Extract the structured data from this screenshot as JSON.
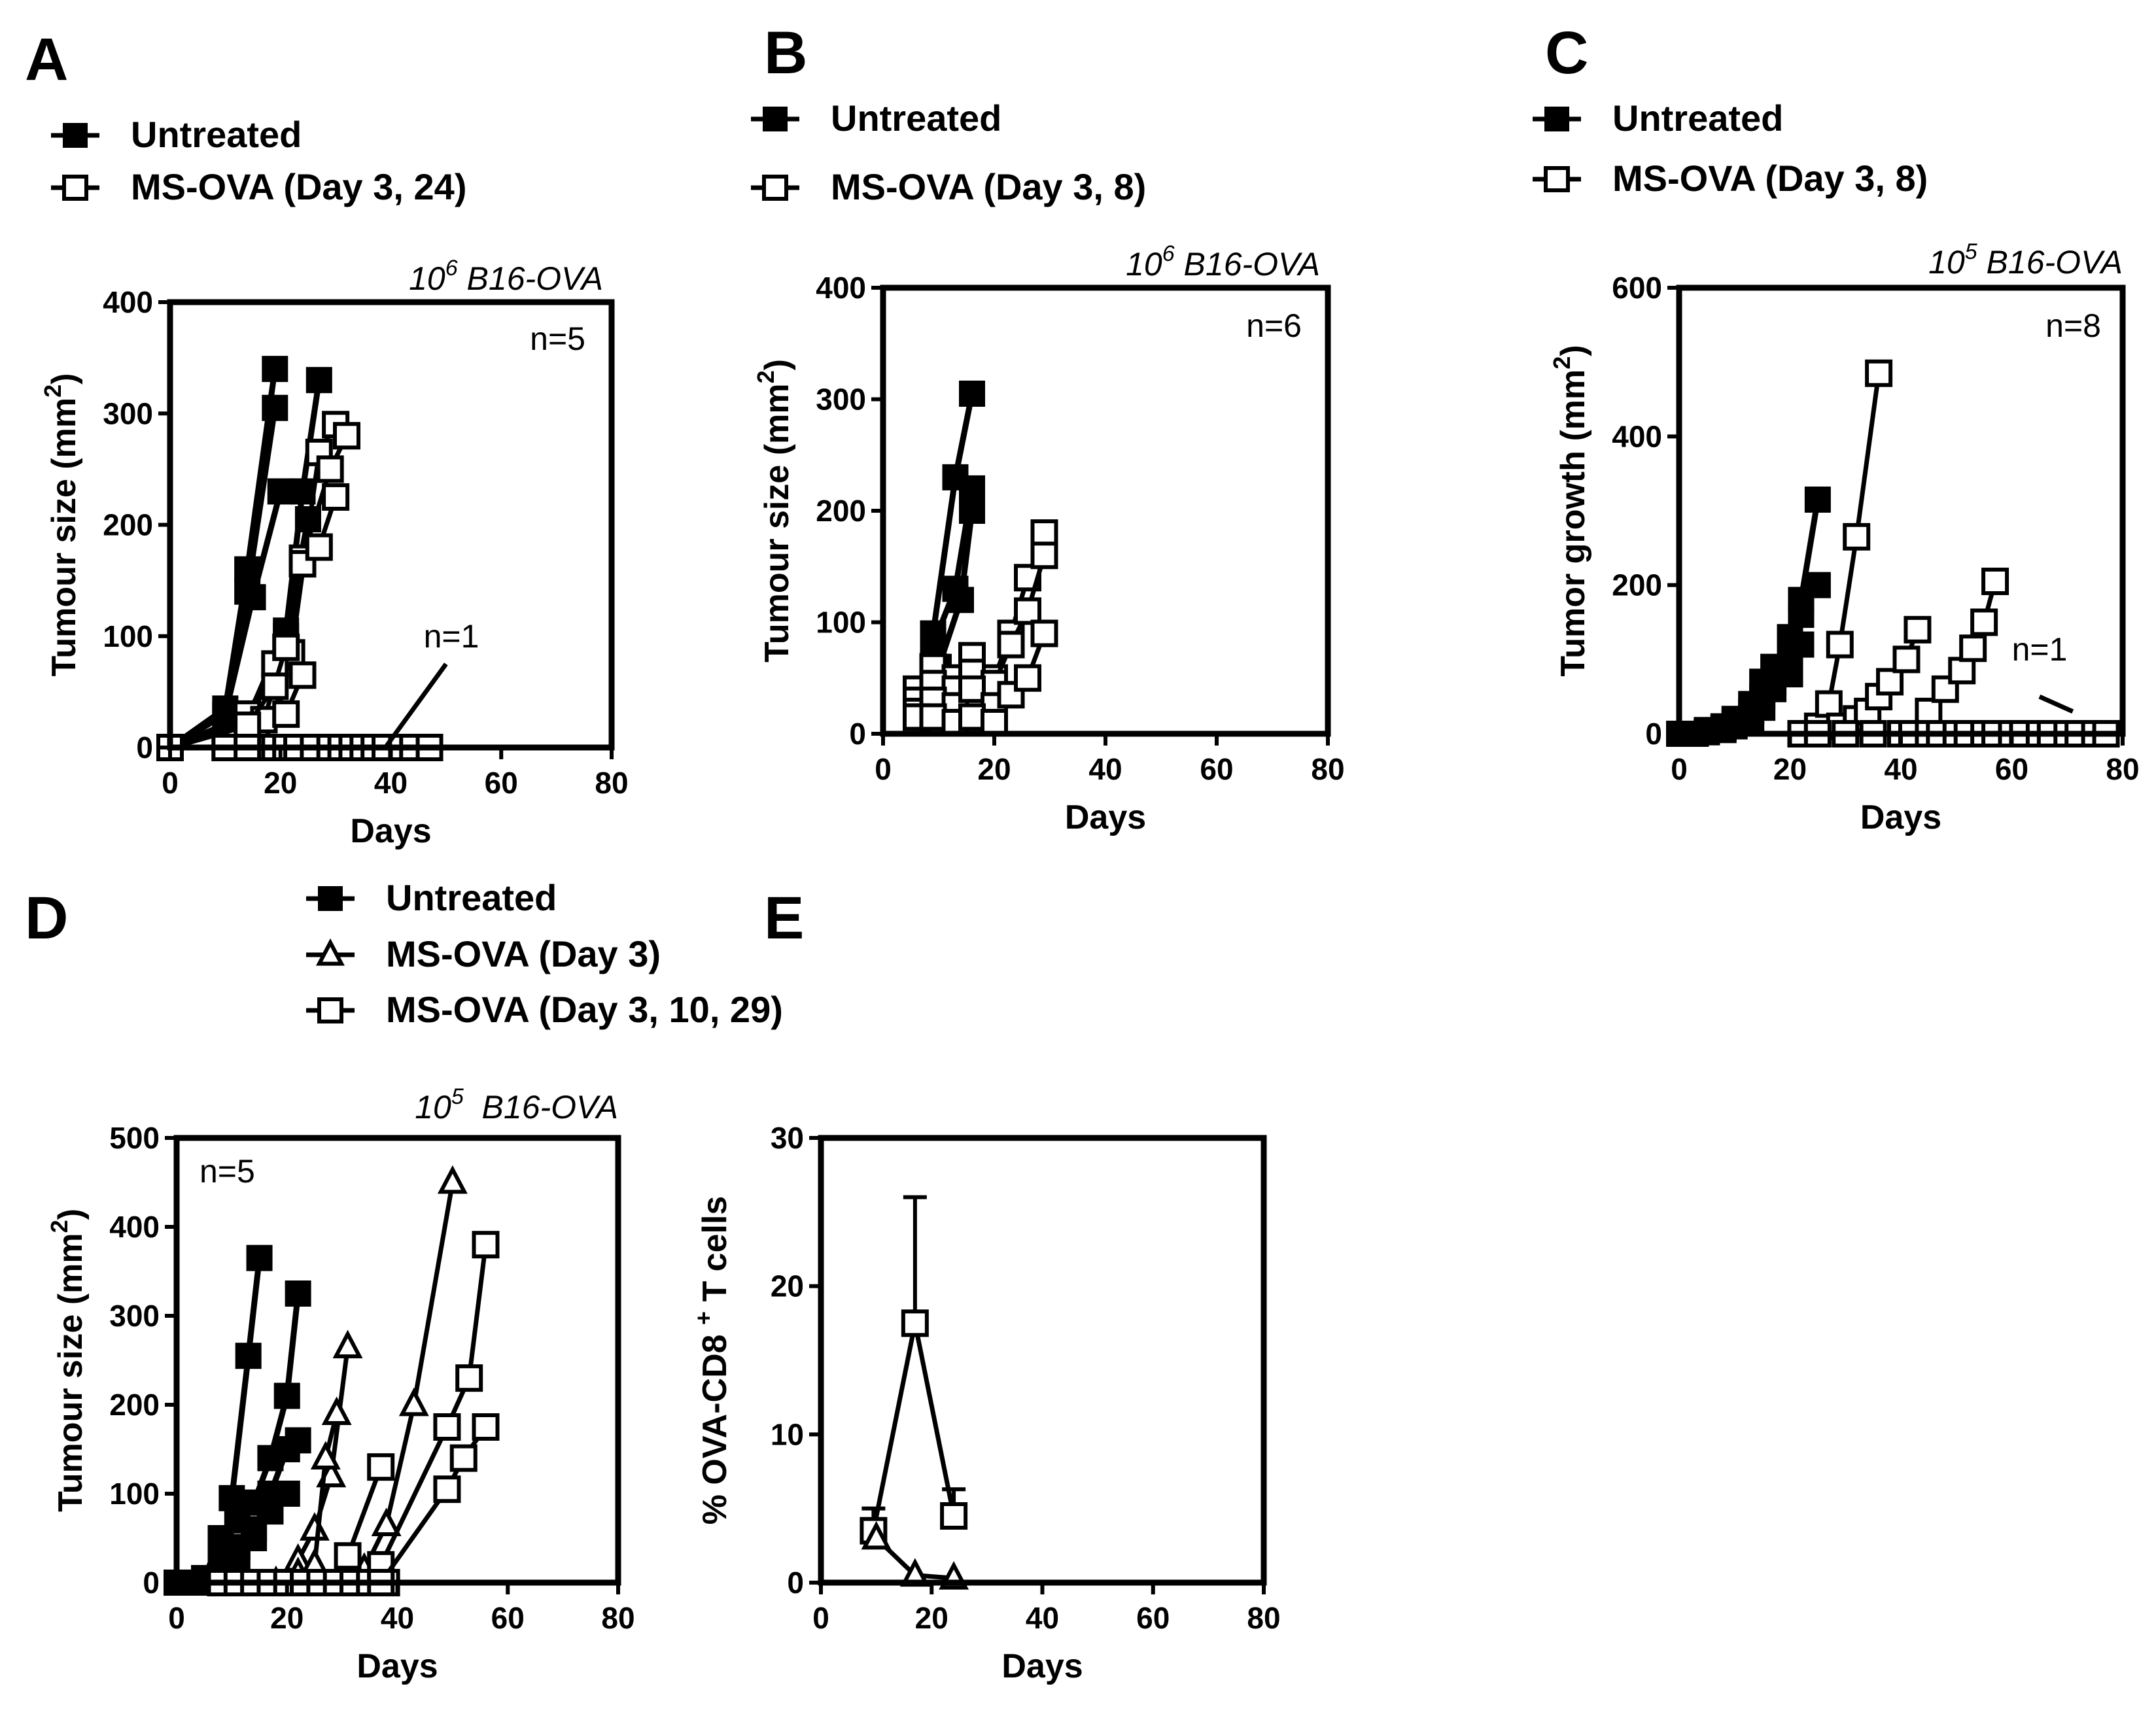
{
  "chart_data": [
    {
      "panel": "A",
      "type": "line",
      "subtitle_base": "10",
      "subtitle_exp": "6",
      "subtitle_rest": " B16-OVA",
      "n_main": "n=5",
      "n_extra": "n=1",
      "xlabel": "Days",
      "ylabel_base": "Tumour size (mm",
      "ylabel_exp": "2",
      "ylabel_end": ")",
      "xlim": [
        0,
        80
      ],
      "ylim": [
        0,
        400
      ],
      "xticks": [
        "0",
        "20",
        "40",
        "60",
        "80"
      ],
      "yticks": [
        "0",
        "100",
        "200",
        "300",
        "400"
      ],
      "legend": [
        {
          "label": "Untreated",
          "marker": "filled-square"
        },
        {
          "label": "MS-OVA (Day 3, 24)",
          "marker": "open-square"
        }
      ],
      "series": [
        {
          "name": "Untreated",
          "marker": "filled-square",
          "x": [
            0,
            10,
            14,
            19
          ],
          "y": [
            0,
            35,
            160,
            340
          ]
        },
        {
          "name": "Untreated",
          "marker": "filled-square",
          "x": [
            0,
            10,
            14,
            19
          ],
          "y": [
            0,
            30,
            140,
            305
          ]
        },
        {
          "name": "Untreated",
          "marker": "filled-square",
          "x": [
            0,
            10,
            15,
            20
          ],
          "y": [
            0,
            30,
            135,
            230
          ]
        },
        {
          "name": "Untreated",
          "marker": "filled-square",
          "x": [
            0,
            14,
            21,
            24,
            27
          ],
          "y": [
            0,
            25,
            105,
            230,
            330
          ]
        },
        {
          "name": "Untreated",
          "marker": "filled-square",
          "x": [
            0,
            14,
            21,
            25
          ],
          "y": [
            0,
            20,
            100,
            205
          ]
        },
        {
          "name": "MS-OVA (Day 3, 24)",
          "marker": "open-square",
          "x": [
            0,
            10,
            17,
            22,
            27,
            30
          ],
          "y": [
            0,
            0,
            0,
            85,
            265,
            290
          ]
        },
        {
          "name": "MS-OVA (Day 3, 24)",
          "marker": "open-square",
          "x": [
            0,
            14,
            19,
            24,
            29,
            32
          ],
          "y": [
            0,
            30,
            75,
            170,
            250,
            280
          ]
        },
        {
          "name": "MS-OVA (Day 3, 24)",
          "marker": "open-square",
          "x": [
            0,
            17,
            21,
            24,
            27,
            30
          ],
          "y": [
            0,
            25,
            90,
            165,
            180,
            225
          ]
        },
        {
          "name": "MS-OVA (Day 3, 24)",
          "marker": "open-square",
          "x": [
            0,
            14,
            19,
            21,
            24
          ],
          "y": [
            0,
            20,
            55,
            30,
            65
          ]
        },
        {
          "name": "MS-OVA (Day 3, 24)",
          "marker": "open-square",
          "x": [
            0,
            10,
            14,
            19,
            21,
            23,
            26,
            29,
            31,
            33,
            35,
            37,
            39,
            42,
            44,
            47
          ],
          "y": [
            0,
            0,
            0,
            0,
            0,
            0,
            0,
            0,
            0,
            0,
            0,
            0,
            0,
            0,
            0,
            0
          ]
        },
        {
          "name": "MS-OVA (Day 3, 24)",
          "marker": "none",
          "x": [
            39,
            50
          ],
          "y": [
            0,
            75
          ]
        }
      ]
    },
    {
      "panel": "B",
      "type": "line",
      "subtitle_base": "10",
      "subtitle_exp": "6",
      "subtitle_rest": " B16-OVA",
      "n_main": "n=6",
      "xlabel": "Days",
      "ylabel_base": "Tumour size (mm",
      "ylabel_exp": "2",
      "ylabel_end": ")",
      "xlim": [
        0,
        80
      ],
      "ylim": [
        0,
        400
      ],
      "xticks": [
        "0",
        "20",
        "40",
        "60",
        "80"
      ],
      "yticks": [
        "0",
        "100",
        "200",
        "300",
        "400"
      ],
      "legend": [
        {
          "label": "Untreated",
          "marker": "filled-square"
        },
        {
          "label": "MS-OVA (Day 3, 8)",
          "marker": "open-square"
        }
      ],
      "series": [
        {
          "name": "Untreated",
          "marker": "filled-square",
          "x": [
            6,
            9,
            13,
            16
          ],
          "y": [
            25,
            90,
            230,
            305
          ]
        },
        {
          "name": "Untreated",
          "marker": "filled-square",
          "x": [
            6,
            9,
            13,
            16
          ],
          "y": [
            20,
            80,
            130,
            220
          ]
        },
        {
          "name": "Untreated",
          "marker": "filled-square",
          "x": [
            6,
            10,
            14,
            16
          ],
          "y": [
            20,
            60,
            120,
            200
          ]
        },
        {
          "name": "MS-OVA (Day 3, 8)",
          "marker": "open-square",
          "x": [
            6,
            9,
            13,
            16,
            20,
            23,
            26,
            29
          ],
          "y": [
            40,
            60,
            50,
            70,
            50,
            90,
            140,
            180
          ]
        },
        {
          "name": "MS-OVA (Day 3, 8)",
          "marker": "open-square",
          "x": [
            6,
            9,
            13,
            16,
            20,
            23,
            26,
            29
          ],
          "y": [
            30,
            45,
            40,
            55,
            45,
            80,
            110,
            160
          ]
        },
        {
          "name": "MS-OVA (Day 3, 8)",
          "marker": "open-square",
          "x": [
            6,
            9,
            13,
            16,
            20,
            23,
            26,
            29
          ],
          "y": [
            20,
            30,
            25,
            40,
            25,
            35,
            50,
            90
          ]
        },
        {
          "name": "MS-OVA (Day 3, 8)",
          "marker": "open-square",
          "x": [
            6,
            9,
            13,
            16,
            20
          ],
          "y": [
            15,
            15,
            10,
            15,
            10
          ]
        }
      ]
    },
    {
      "panel": "C",
      "type": "line",
      "subtitle_base": "10",
      "subtitle_exp": "5",
      "subtitle_rest": " B16-OVA",
      "n_main": "n=8",
      "n_extra": "n=1",
      "xlabel": "Days",
      "ylabel_base": "Tumor growth (mm",
      "ylabel_exp": "2",
      "ylabel_end": ")",
      "xlim": [
        0,
        80
      ],
      "ylim": [
        0,
        600
      ],
      "xticks": [
        "0",
        "20",
        "40",
        "60",
        "80"
      ],
      "yticks": [
        "0",
        "200",
        "400",
        "600"
      ],
      "legend": [
        {
          "label": "Untreated",
          "marker": "filled-square"
        },
        {
          "label": "MS-OVA (Day 3, 8)",
          "marker": "open-square"
        }
      ],
      "series": [
        {
          "name": "Untreated",
          "marker": "filled-square",
          "x": [
            0,
            3,
            5,
            8,
            10,
            13,
            15,
            17,
            20,
            22,
            25
          ],
          "y": [
            0,
            0,
            5,
            10,
            20,
            40,
            70,
            90,
            130,
            180,
            315
          ]
        },
        {
          "name": "Untreated",
          "marker": "filled-square",
          "x": [
            0,
            3,
            5,
            8,
            10,
            13,
            15,
            17,
            20,
            22,
            25
          ],
          "y": [
            0,
            0,
            3,
            8,
            15,
            30,
            50,
            70,
            110,
            160,
            200
          ]
        },
        {
          "name": "Untreated",
          "marker": "filled-square",
          "x": [
            0,
            3,
            5,
            8,
            10,
            13,
            15,
            17,
            20,
            22
          ],
          "y": [
            0,
            0,
            2,
            5,
            10,
            20,
            35,
            60,
            80,
            120
          ]
        },
        {
          "name": "MS-OVA (Day 3, 8)",
          "marker": "open-square",
          "x": [
            22,
            25,
            27,
            29,
            32,
            36
          ],
          "y": [
            0,
            10,
            40,
            120,
            265,
            485
          ]
        },
        {
          "name": "MS-OVA (Day 3, 8)",
          "marker": "open-square",
          "x": [
            29,
            32,
            34,
            36,
            38,
            41,
            43
          ],
          "y": [
            10,
            20,
            30,
            50,
            70,
            100,
            140
          ]
        },
        {
          "name": "MS-OVA (Day 3, 8)",
          "marker": "open-square",
          "x": [
            42,
            45,
            48,
            51,
            53,
            55,
            57
          ],
          "y": [
            0,
            30,
            60,
            85,
            115,
            150,
            205
          ]
        },
        {
          "name": "MS-OVA (Day 3, 8)",
          "marker": "open-square",
          "x": [
            25,
            30,
            35,
            40,
            42,
            45,
            47,
            50,
            52,
            55,
            57,
            60,
            62,
            65,
            67,
            70,
            72,
            75,
            77
          ],
          "y": [
            0,
            0,
            0,
            0,
            0,
            0,
            0,
            0,
            0,
            0,
            0,
            0,
            0,
            0,
            0,
            0,
            0,
            0,
            0
          ]
        },
        {
          "name": "MS-OVA (Day 3, 8)",
          "marker": "none",
          "x": [
            65,
            71
          ],
          "y": [
            50,
            30
          ]
        }
      ]
    },
    {
      "panel": "D",
      "type": "line",
      "subtitle_base": "10",
      "subtitle_exp": "5",
      "subtitle_rest": "  B16-OVA",
      "n_main": "n=5",
      "xlabel": "Days",
      "ylabel_base": "Tumour size (mm",
      "ylabel_exp": "2",
      "ylabel_end": ")",
      "xlim": [
        0,
        80
      ],
      "ylim": [
        0,
        500
      ],
      "xticks": [
        "0",
        "20",
        "40",
        "60",
        "80"
      ],
      "yticks": [
        "0",
        "100",
        "200",
        "300",
        "400",
        "500"
      ],
      "legend": [
        {
          "label": "Untreated",
          "marker": "filled-square"
        },
        {
          "label": "MS-OVA (Day 3)",
          "marker": "open-triangle"
        },
        {
          "label": "MS-OVA (Day 3, 10, 29)",
          "marker": "open-square"
        }
      ],
      "series": [
        {
          "name": "Untreated",
          "marker": "filled-square",
          "x": [
            0,
            3,
            5,
            8,
            10,
            13,
            15
          ],
          "y": [
            0,
            0,
            0,
            10,
            95,
            255,
            365
          ]
        },
        {
          "name": "Untreated",
          "marker": "filled-square",
          "x": [
            0,
            5,
            8,
            11,
            14,
            17,
            20,
            22
          ],
          "y": [
            0,
            5,
            50,
            70,
            90,
            140,
            210,
            325
          ]
        },
        {
          "name": "Untreated",
          "marker": "filled-square",
          "x": [
            0,
            5,
            8,
            11,
            14,
            17,
            20,
            22
          ],
          "y": [
            0,
            5,
            30,
            40,
            60,
            100,
            150,
            160
          ]
        },
        {
          "name": "Untreated",
          "marker": "filled-square",
          "x": [
            5,
            8,
            11,
            14,
            17,
            20
          ],
          "y": [
            5,
            20,
            30,
            50,
            80,
            100
          ]
        },
        {
          "name": "MS-OVA (Day 3)",
          "marker": "open-triangle",
          "x": [
            18,
            22,
            25,
            28,
            31
          ],
          "y": [
            0,
            25,
            60,
            120,
            265
          ]
        },
        {
          "name": "MS-OVA (Day 3)",
          "marker": "open-triangle",
          "x": [
            22,
            25,
            27,
            29
          ],
          "y": [
            10,
            20,
            140,
            190
          ]
        },
        {
          "name": "MS-OVA (Day 3)",
          "marker": "open-triangle",
          "x": [
            34,
            38,
            43,
            50
          ],
          "y": [
            15,
            65,
            200,
            450
          ]
        },
        {
          "name": "MS-OVA (Day 3, 10, 29)",
          "marker": "open-square",
          "x": [
            8,
            11,
            14,
            17,
            20,
            23,
            26,
            29,
            32,
            35,
            38
          ],
          "y": [
            0,
            0,
            0,
            0,
            0,
            0,
            0,
            0,
            0,
            0,
            0
          ]
        },
        {
          "name": "MS-OVA (Day 3, 10, 29)",
          "marker": "open-square",
          "x": [
            31,
            37
          ],
          "y": [
            30,
            130
          ]
        },
        {
          "name": "MS-OVA (Day 3, 10, 29)",
          "marker": "open-square",
          "x": [
            37,
            49,
            53,
            56
          ],
          "y": [
            20,
            175,
            230,
            380
          ]
        },
        {
          "name": "MS-OVA (Day 3, 10, 29)",
          "marker": "open-square",
          "x": [
            37,
            49,
            52,
            56
          ],
          "y": [
            0,
            105,
            140,
            175
          ]
        }
      ]
    },
    {
      "panel": "E",
      "type": "line",
      "xlabel": "Days",
      "ylabel_base": "% OVA-CD8 ",
      "ylabel_exp": "+",
      "ylabel_end": " T cells",
      "xlim": [
        0,
        80
      ],
      "ylim": [
        0,
        30
      ],
      "xticks": [
        "0",
        "20",
        "40",
        "60",
        "80"
      ],
      "yticks": [
        "0",
        "10",
        "20",
        "30"
      ],
      "series": [
        {
          "name": "MS-OVA (Day 3, 10, 29)",
          "marker": "open-square",
          "x": [
            9.5,
            17,
            24
          ],
          "y": [
            3.5,
            17.5,
            4.5
          ],
          "error": [
            1.5,
            8.5,
            1.8
          ]
        },
        {
          "name": "MS-OVA (Day 3)",
          "marker": "open-triangle",
          "x": [
            10,
            17,
            24
          ],
          "y": [
            3,
            0.5,
            0.3
          ]
        }
      ]
    }
  ]
}
